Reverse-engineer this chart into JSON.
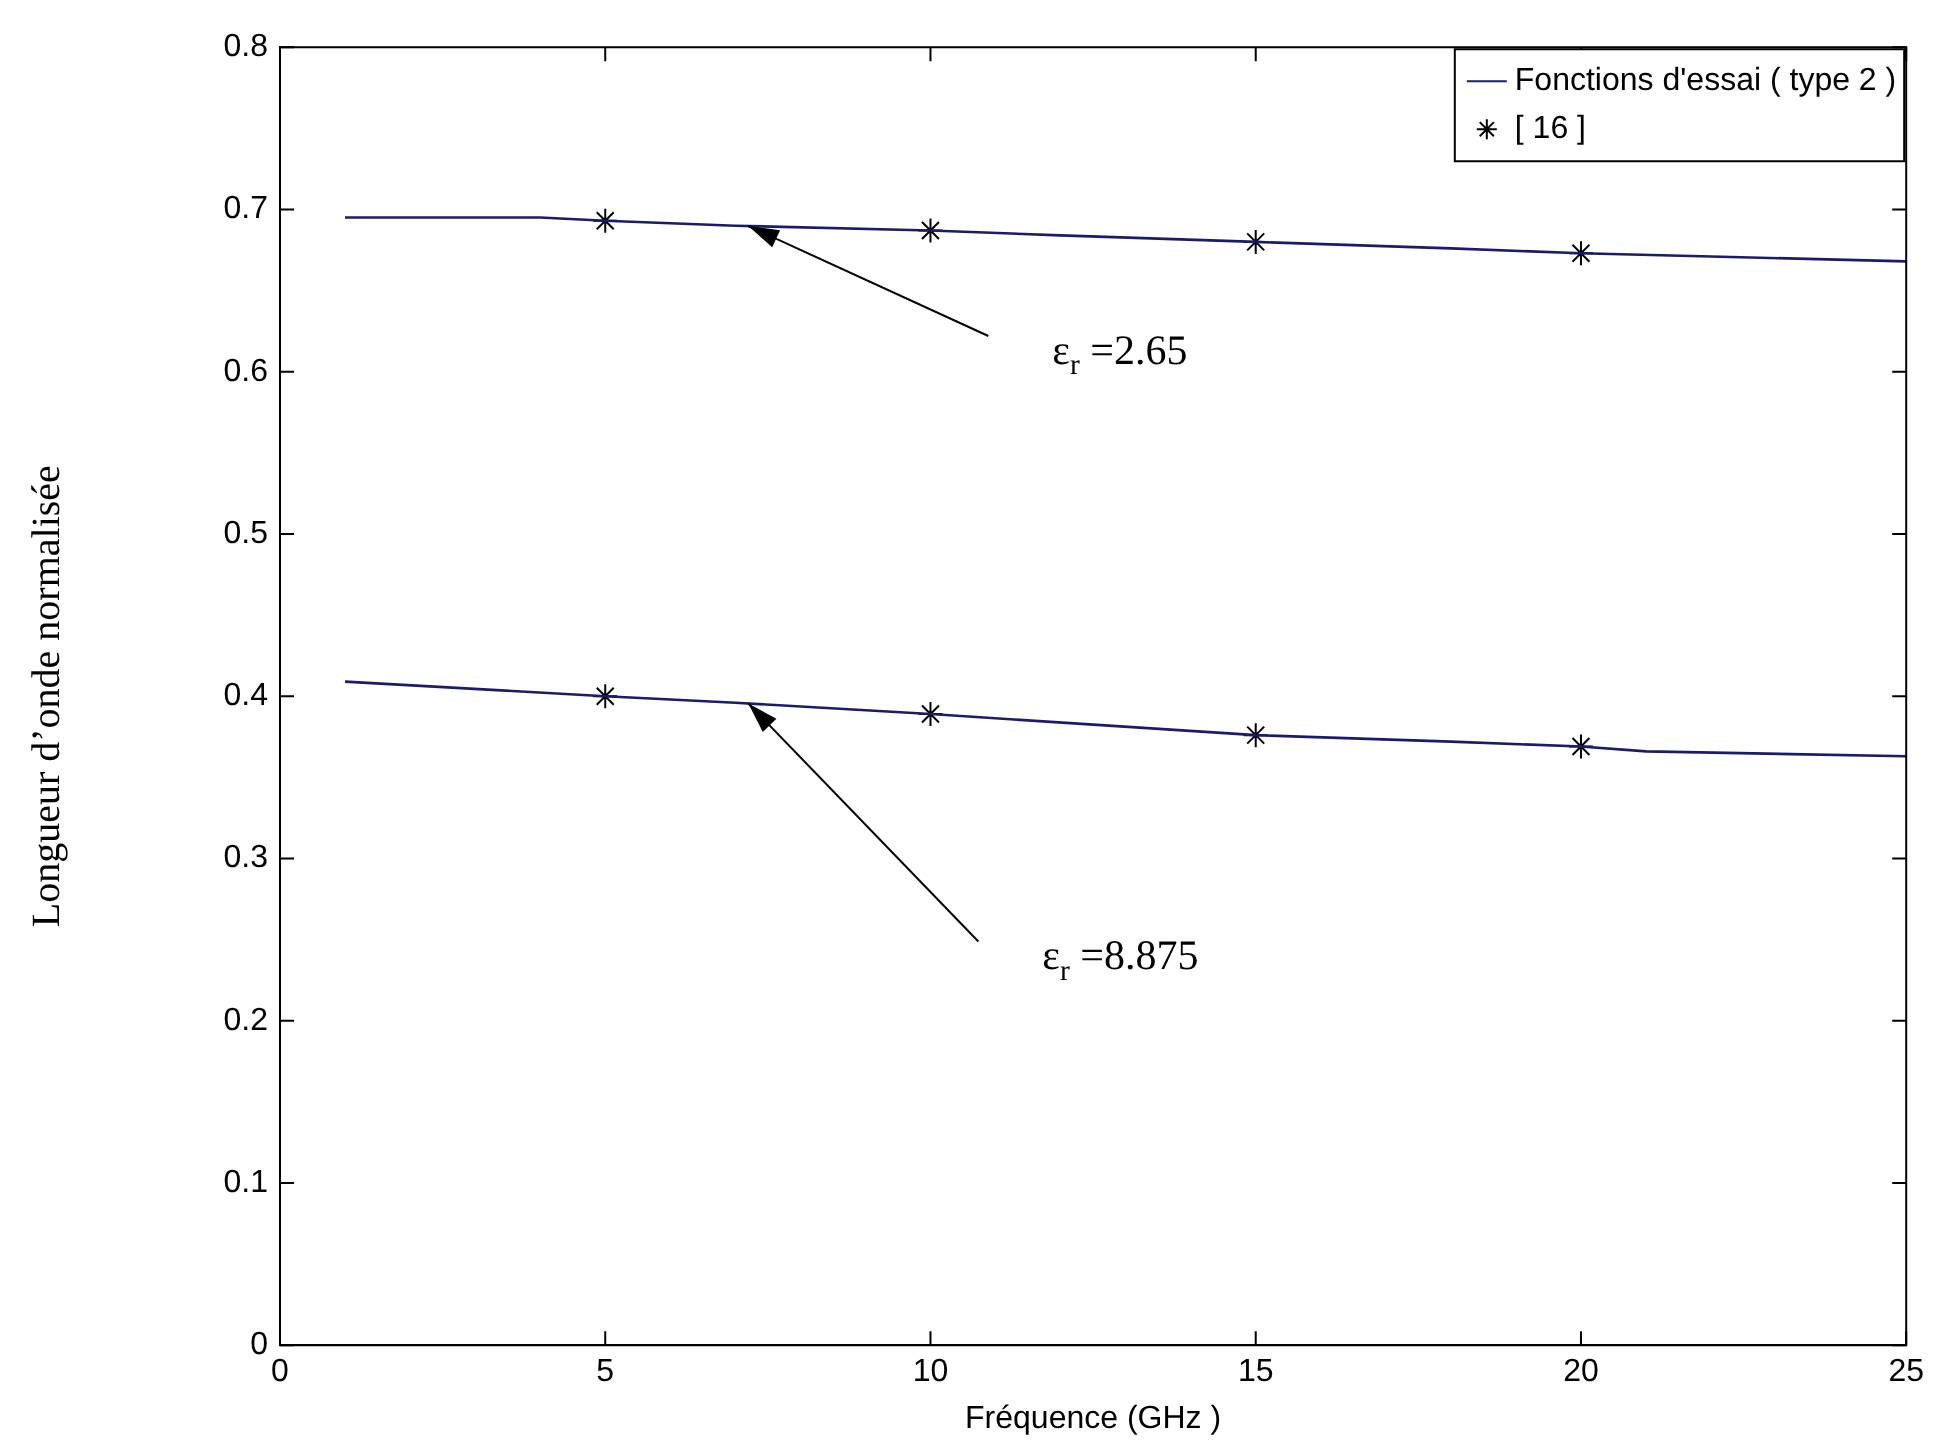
{
  "chart_data": {
    "type": "line",
    "xlabel": "Fréquence (GHz )",
    "ylabel": "Longueur d’onde normalisée",
    "xlim": [
      0,
      25
    ],
    "xticks": [
      0,
      5,
      10,
      15,
      20,
      25
    ],
    "ylim": [
      0,
      0.8
    ],
    "yticks": [
      0,
      0.1,
      0.2,
      0.3,
      0.4,
      0.5,
      0.6,
      0.7,
      0.8
    ],
    "grid": false,
    "legend": "top right",
    "series": [
      {
        "name": "Fonctions d'essai ( type 2 )",
        "color": "#1a1a6e",
        "marker": "none",
        "x": [
          1,
          4,
          5,
          7,
          10,
          12,
          15,
          18,
          20,
          22,
          25
        ],
        "values": [
          0.695,
          0.695,
          0.693,
          0.69,
          0.687,
          0.684,
          0.68,
          0.676,
          0.673,
          0.671,
          0.668
        ]
      },
      {
        "color": "#1a1a6e",
        "marker": "none",
        "x": [
          1,
          5,
          7,
          10,
          15,
          18,
          20,
          21,
          25
        ],
        "values": [
          0.409,
          0.4,
          0.396,
          0.389,
          0.376,
          0.372,
          0.369,
          0.366,
          0.363
        ]
      },
      {
        "name": "[ 16 ]",
        "type": "scatter",
        "color": "#000000",
        "marker": "cross",
        "x": [
          5,
          10,
          15,
          20
        ],
        "values": [
          0.693,
          0.687,
          0.68,
          0.673
        ]
      },
      {
        "type": "scatter",
        "color": "#000000",
        "marker": "cross",
        "x": [
          5,
          10,
          15,
          20
        ],
        "values": [
          0.4,
          0.389,
          0.376,
          0.369
        ]
      }
    ],
    "annotations": [
      "ε$_{r}$ =2.65",
      "ε$_{r}$ =8.875"
    ]
  }
}
